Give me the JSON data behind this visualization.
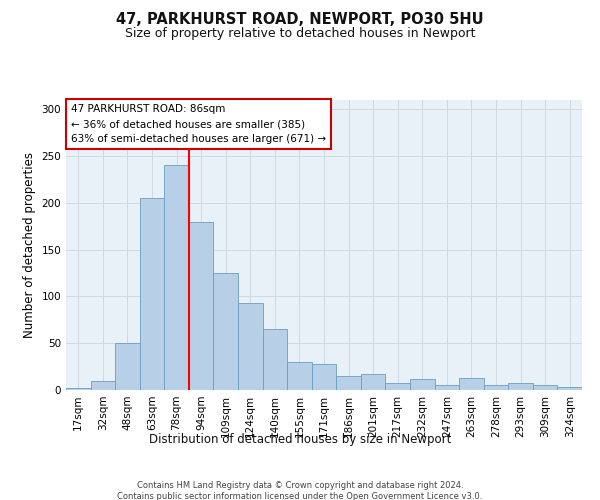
{
  "title1": "47, PARKHURST ROAD, NEWPORT, PO30 5HU",
  "title2": "Size of property relative to detached houses in Newport",
  "xlabel": "Distribution of detached houses by size in Newport",
  "ylabel": "Number of detached properties",
  "footer1": "Contains HM Land Registry data © Crown copyright and database right 2024.",
  "footer2": "Contains public sector information licensed under the Open Government Licence v3.0.",
  "annotation_title": "47 PARKHURST ROAD: 86sqm",
  "annotation_line1": "← 36% of detached houses are smaller (385)",
  "annotation_line2": "63% of semi-detached houses are larger (671) →",
  "categories": [
    "17sqm",
    "32sqm",
    "48sqm",
    "63sqm",
    "78sqm",
    "94sqm",
    "109sqm",
    "124sqm",
    "140sqm",
    "155sqm",
    "171sqm",
    "186sqm",
    "201sqm",
    "217sqm",
    "232sqm",
    "247sqm",
    "263sqm",
    "278sqm",
    "293sqm",
    "309sqm",
    "324sqm"
  ],
  "values": [
    2,
    10,
    50,
    205,
    240,
    180,
    125,
    93,
    65,
    30,
    28,
    15,
    17,
    8,
    12,
    5,
    13,
    5,
    8,
    5,
    3
  ],
  "bar_color": "#b8cfe8",
  "bar_edge_color": "#6a9ec5",
  "redline_index": 4,
  "ylim": [
    0,
    310
  ],
  "yticks": [
    0,
    50,
    100,
    150,
    200,
    250,
    300
  ],
  "background_color": "#ffffff",
  "grid_color": "#d0d8e4",
  "title1_fontsize": 10.5,
  "title2_fontsize": 9,
  "axis_label_fontsize": 8.5,
  "tick_fontsize": 7.5,
  "annotation_fontsize": 7.5,
  "annotation_box_color": "#ffffff",
  "annotation_box_edge": "#cc0000"
}
